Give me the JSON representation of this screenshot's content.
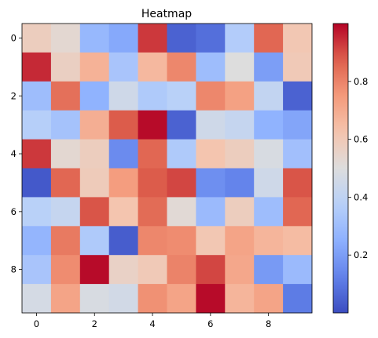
{
  "chart_data": {
    "type": "heatmap",
    "title": "Heatmap",
    "colormap": "coolwarm",
    "color_min": "#3b4cc0",
    "color_max": "#b40426",
    "vmin": 0.0,
    "vmax": 1.0,
    "rows": 10,
    "cols": 10,
    "x_ticks": [
      0,
      2,
      4,
      6,
      8
    ],
    "y_ticks": [
      0,
      2,
      4,
      6,
      8
    ],
    "colorbar_ticks": [
      0.2,
      0.4,
      0.6,
      0.8
    ],
    "colorbar_tick_labels": [
      "0.2",
      "0.4",
      "0.6",
      "0.8"
    ],
    "values": [
      [
        0.58,
        0.53,
        0.28,
        0.23,
        0.93,
        0.05,
        0.08,
        0.36,
        0.86,
        0.61
      ],
      [
        0.95,
        0.57,
        0.68,
        0.33,
        0.66,
        0.79,
        0.3,
        0.5,
        0.2,
        0.6
      ],
      [
        0.3,
        0.84,
        0.26,
        0.45,
        0.35,
        0.38,
        0.79,
        0.73,
        0.41,
        0.05
      ],
      [
        0.37,
        0.32,
        0.69,
        0.88,
        0.99,
        0.05,
        0.45,
        0.42,
        0.26,
        0.22
      ],
      [
        0.93,
        0.53,
        0.58,
        0.15,
        0.86,
        0.35,
        0.62,
        0.58,
        0.48,
        0.31
      ],
      [
        0.03,
        0.86,
        0.59,
        0.74,
        0.88,
        0.91,
        0.16,
        0.13,
        0.45,
        0.89
      ],
      [
        0.38,
        0.42,
        0.89,
        0.62,
        0.85,
        0.52,
        0.29,
        0.58,
        0.3,
        0.86
      ],
      [
        0.27,
        0.82,
        0.35,
        0.04,
        0.79,
        0.78,
        0.61,
        0.72,
        0.67,
        0.65
      ],
      [
        0.33,
        0.78,
        0.99,
        0.56,
        0.6,
        0.8,
        0.91,
        0.71,
        0.19,
        0.29
      ],
      [
        0.47,
        0.72,
        0.48,
        0.46,
        0.77,
        0.72,
        0.99,
        0.67,
        0.72,
        0.11
      ]
    ]
  }
}
